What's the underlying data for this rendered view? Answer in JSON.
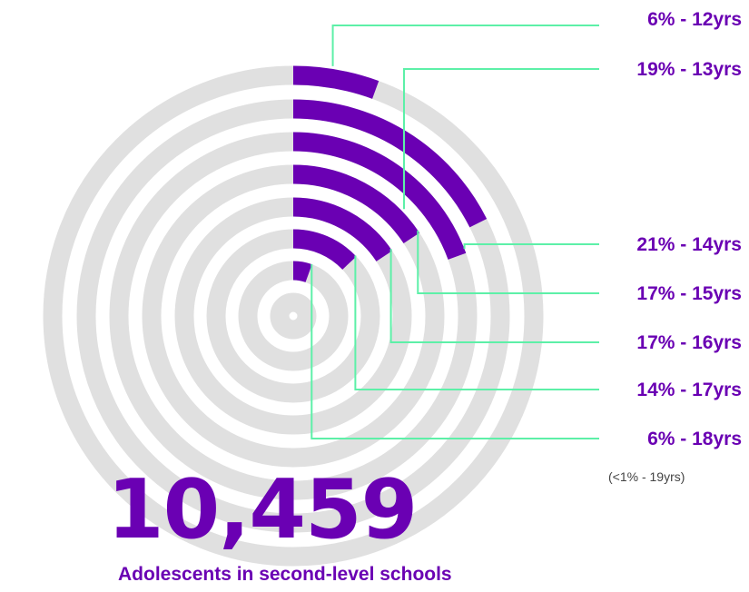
{
  "colors": {
    "accent": "#6a00b3",
    "track": "#e0e0e0",
    "leader": "#5df0a8",
    "background": "#ffffff"
  },
  "headline": {
    "value": "10,459",
    "label": "Adolescents in second-level schools"
  },
  "footnote": "(<1% - 19yrs)",
  "chart_data": {
    "type": "radial-bar",
    "series": [
      {
        "label": "6% - 12yrs",
        "age": 12,
        "percent": 6
      },
      {
        "label": "19% - 13yrs",
        "age": 13,
        "percent": 19
      },
      {
        "label": "21% - 14yrs",
        "age": 14,
        "percent": 21
      },
      {
        "label": "17% - 15yrs",
        "age": 15,
        "percent": 17
      },
      {
        "label": "17% - 16yrs",
        "age": 16,
        "percent": 17
      },
      {
        "label": "14% - 17yrs",
        "age": 17,
        "percent": 14
      },
      {
        "label": "6% - 18yrs",
        "age": 18,
        "percent": 6
      }
    ],
    "scale_max_percent": 21
  }
}
